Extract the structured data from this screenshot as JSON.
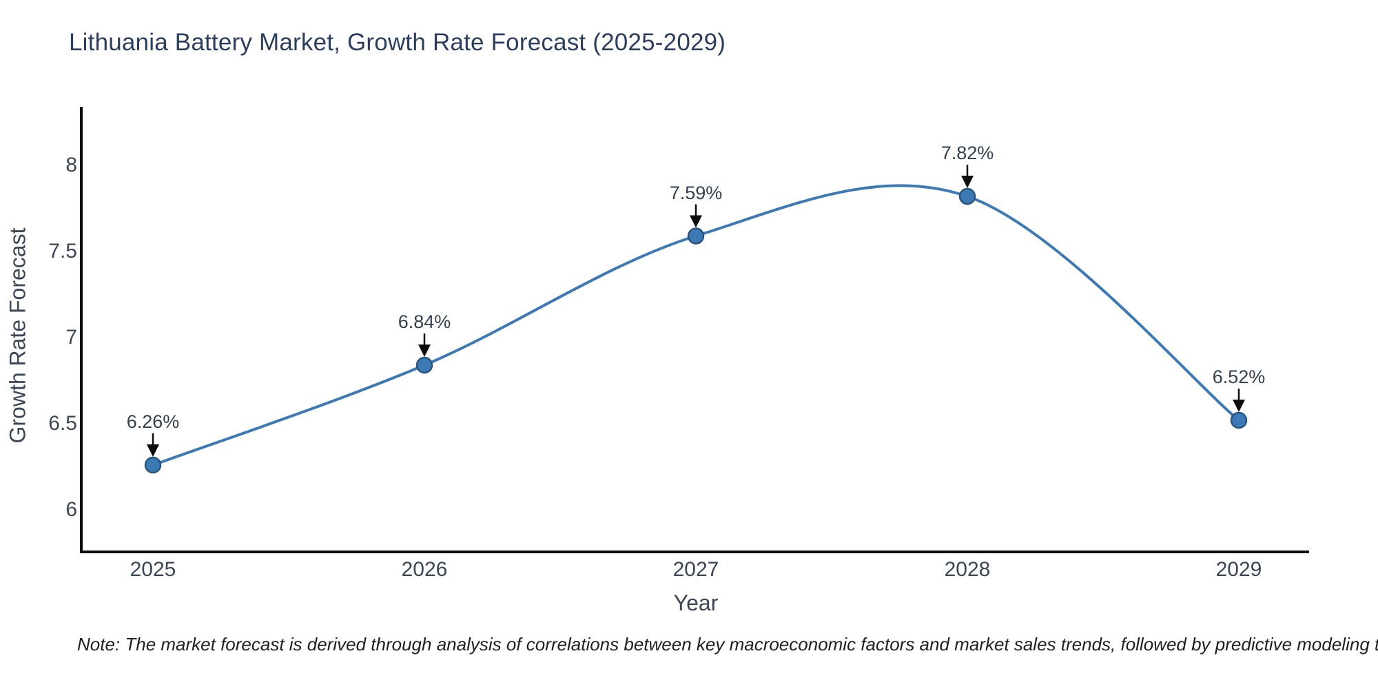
{
  "title": "Lithuania Battery Market, Growth Rate Forecast (2025-2029)",
  "note": "Note: The market forecast is derived through analysis of correlations between key macroeconomic factors and market sales trends, followed by predictive modeling to project future sales",
  "chart_data": {
    "type": "line",
    "line_shape": "spline",
    "title": "Lithuania Battery Market, Growth Rate Forecast (2025-2029)",
    "xlabel": "Year",
    "ylabel": "Growth Rate Forecast",
    "x": [
      2025,
      2026,
      2027,
      2028,
      2029
    ],
    "y": [
      6.26,
      6.84,
      7.59,
      7.82,
      6.52
    ],
    "point_labels": [
      "6.26%",
      "6.84%",
      "7.59%",
      "7.82%",
      "6.52%"
    ],
    "xticks": [
      "2025",
      "2026",
      "2027",
      "2028",
      "2029"
    ],
    "yticks": [
      6,
      6.5,
      7,
      7.5,
      8
    ],
    "ylim": [
      5.75,
      8.35
    ],
    "grid": false,
    "legend": "none",
    "annotations_arrow": true,
    "colors": {
      "line": "#3c79b5",
      "marker_fill": "#3c79b5",
      "marker_edge": "#27557f",
      "arrow": "#0d0d0d",
      "axis_line": "#0d0d0d",
      "title_text": "#2c3e5d",
      "tick_text": "#3b4656",
      "background": "#ffffff"
    }
  }
}
